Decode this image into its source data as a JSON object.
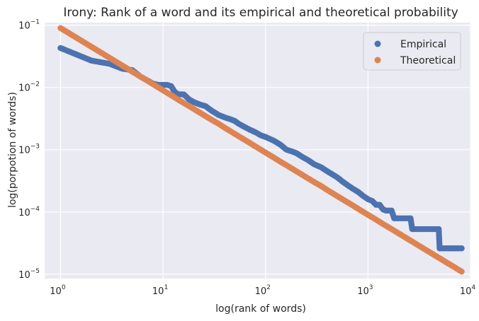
{
  "chart_data": {
    "type": "scatter",
    "title": "Irony: Rank of a word and its empirical and theoretical probability",
    "xlabel": "log(rank of words)",
    "ylabel": "log(porpotion of words)",
    "xscale": "log",
    "yscale": "log",
    "xlim": [
      0.7,
      10000
    ],
    "ylim": [
      8.5e-06,
      0.11
    ],
    "x_ticks": [
      {
        "base": "10",
        "exp": "0",
        "value": 1
      },
      {
        "base": "10",
        "exp": "1",
        "value": 10
      },
      {
        "base": "10",
        "exp": "2",
        "value": 100
      },
      {
        "base": "10",
        "exp": "3",
        "value": 1000
      },
      {
        "base": "10",
        "exp": "4",
        "value": 10000
      }
    ],
    "y_ticks": [
      {
        "base": "10",
        "exp": "−5",
        "value": 1e-05
      },
      {
        "base": "10",
        "exp": "−4",
        "value": 0.0001
      },
      {
        "base": "10",
        "exp": "−3",
        "value": 0.001
      },
      {
        "base": "10",
        "exp": "−2",
        "value": 0.01
      },
      {
        "base": "10",
        "exp": "−1",
        "value": 0.1
      }
    ],
    "grid": true,
    "legend_position": "top-right",
    "series": [
      {
        "name": "Empirical",
        "color": "#4c72b0",
        "points": [
          [
            1,
            0.043
          ],
          [
            2,
            0.027
          ],
          [
            3,
            0.024
          ],
          [
            4,
            0.02
          ],
          [
            5,
            0.019
          ],
          [
            6,
            0.015
          ],
          [
            7,
            0.013
          ],
          [
            8,
            0.0115
          ],
          [
            9,
            0.011
          ],
          [
            10,
            0.011
          ],
          [
            11,
            0.011
          ],
          [
            12,
            0.0105
          ],
          [
            13,
            0.0085
          ],
          [
            14,
            0.0078
          ],
          [
            16,
            0.0077
          ],
          [
            18,
            0.0064
          ],
          [
            20,
            0.0058
          ],
          [
            23,
            0.0053
          ],
          [
            26,
            0.005
          ],
          [
            30,
            0.0042
          ],
          [
            35,
            0.0036
          ],
          [
            40,
            0.0033
          ],
          [
            45,
            0.0031
          ],
          [
            50,
            0.0029
          ],
          [
            55,
            0.0026
          ],
          [
            60,
            0.0024
          ],
          [
            70,
            0.0021
          ],
          [
            80,
            0.0019
          ],
          [
            90,
            0.0017
          ],
          [
            100,
            0.0016
          ],
          [
            120,
            0.0014
          ],
          [
            140,
            0.0012
          ],
          [
            160,
            0.001
          ],
          [
            180,
            0.00094
          ],
          [
            200,
            0.00088
          ],
          [
            230,
            0.00076
          ],
          [
            260,
            0.00068
          ],
          [
            300,
            0.00058
          ],
          [
            350,
            0.00052
          ],
          [
            400,
            0.00045
          ],
          [
            450,
            0.0004
          ],
          [
            500,
            0.00036
          ],
          [
            560,
            0.00031
          ],
          [
            630,
            0.00027
          ],
          [
            700,
            0.00024
          ],
          [
            800,
            0.00021
          ],
          [
            900,
            0.00018
          ],
          [
            1000,
            0.00016
          ],
          [
            1100,
            0.00015
          ],
          [
            1200,
            0.00013
          ],
          [
            1300,
            0.00013
          ],
          [
            1400,
            0.00011
          ],
          [
            1500,
            0.000105
          ],
          [
            1700,
            0.000105
          ],
          [
            1800,
            7.9e-05
          ],
          [
            2000,
            7.9e-05
          ],
          [
            2300,
            7.9e-05
          ],
          [
            2600,
            7.9e-05
          ],
          [
            2700,
            5.3e-05
          ],
          [
            3000,
            5.3e-05
          ],
          [
            3500,
            5.3e-05
          ],
          [
            4000,
            5.3e-05
          ],
          [
            4500,
            5.3e-05
          ],
          [
            4900,
            5.3e-05
          ],
          [
            5000,
            2.6e-05
          ],
          [
            5600,
            2.6e-05
          ],
          [
            6300,
            2.6e-05
          ],
          [
            7000,
            2.6e-05
          ],
          [
            7800,
            2.6e-05
          ],
          [
            8200,
            2.6e-05
          ]
        ]
      },
      {
        "name": "Theoretical",
        "color": "#dd8452",
        "points": [
          [
            1,
            0.09
          ],
          [
            2,
            0.045
          ],
          [
            3,
            0.03
          ],
          [
            4,
            0.0225
          ],
          [
            5,
            0.018
          ],
          [
            6,
            0.015
          ],
          [
            7,
            0.0129
          ],
          [
            8,
            0.01125
          ],
          [
            9,
            0.01
          ],
          [
            10,
            0.009
          ],
          [
            12,
            0.0075
          ],
          [
            14,
            0.0064
          ],
          [
            16,
            0.0056
          ],
          [
            18,
            0.005
          ],
          [
            20,
            0.0045
          ],
          [
            25,
            0.0036
          ],
          [
            30,
            0.003
          ],
          [
            35,
            0.0026
          ],
          [
            40,
            0.00225
          ],
          [
            50,
            0.0018
          ],
          [
            60,
            0.0015
          ],
          [
            70,
            0.00129
          ],
          [
            80,
            0.001125
          ],
          [
            100,
            0.0009
          ],
          [
            120,
            0.00075
          ],
          [
            140,
            0.00064
          ],
          [
            170,
            0.00053
          ],
          [
            200,
            0.00045
          ],
          [
            250,
            0.00036
          ],
          [
            300,
            0.0003
          ],
          [
            350,
            0.00026
          ],
          [
            400,
            0.000225
          ],
          [
            500,
            0.00018
          ],
          [
            600,
            0.00015
          ],
          [
            700,
            0.000129
          ],
          [
            800,
            0.0001125
          ],
          [
            1000,
            9e-05
          ],
          [
            1200,
            7.5e-05
          ],
          [
            1400,
            6.4e-05
          ],
          [
            1700,
            5.3e-05
          ],
          [
            2000,
            4.5e-05
          ],
          [
            2500,
            3.6e-05
          ],
          [
            3000,
            3e-05
          ],
          [
            3500,
            2.57e-05
          ],
          [
            4000,
            2.25e-05
          ],
          [
            5000,
            1.8e-05
          ],
          [
            6000,
            1.5e-05
          ],
          [
            7000,
            1.29e-05
          ],
          [
            8000,
            1.125e-05
          ],
          [
            8200,
            1.1e-05
          ]
        ]
      }
    ]
  }
}
